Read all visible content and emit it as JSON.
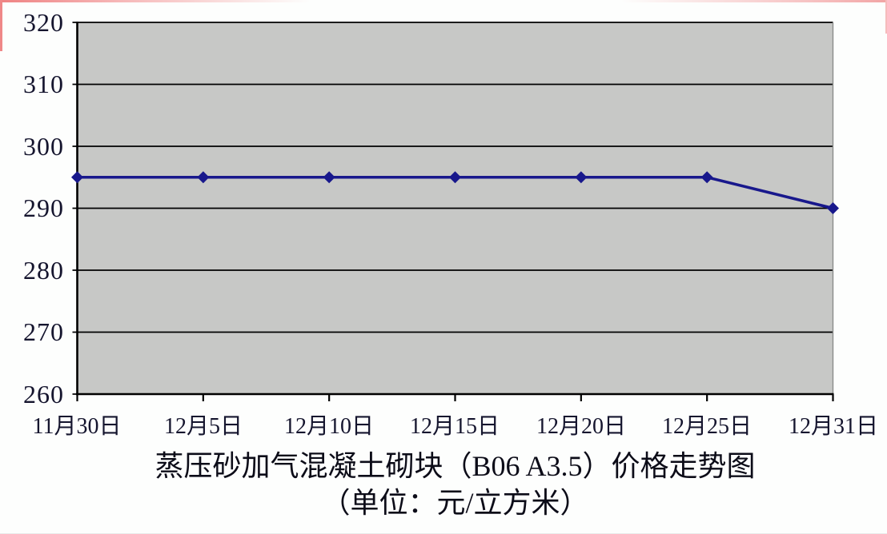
{
  "page": {
    "background_color": "#fdfefd",
    "border_accent_color": "#ef8383"
  },
  "chart_data": {
    "type": "line",
    "title": "蒸压砂加气混凝土砌块（B06 A3.5）价格走势图",
    "subtitle": "（单位：元/立方米）",
    "categories": [
      "11月30日",
      "12月5日",
      "12月10日",
      "12月15日",
      "12月20日",
      "12月25日",
      "12月31日"
    ],
    "series": [
      {
        "name": "价格",
        "values": [
          295,
          295,
          295,
          295,
          295,
          295,
          290
        ]
      }
    ],
    "ylim": [
      260,
      320
    ],
    "ytick_step": 10,
    "yticks": [
      "320",
      "310",
      "300",
      "290",
      "280",
      "270",
      "260"
    ],
    "xlabel": "",
    "ylabel": "",
    "grid": "horizontal",
    "legend_position": "none",
    "marker": "diamond",
    "line_color": "#18188c",
    "plot_bg_color": "#c7c8c6",
    "axis_color": "#000000"
  }
}
